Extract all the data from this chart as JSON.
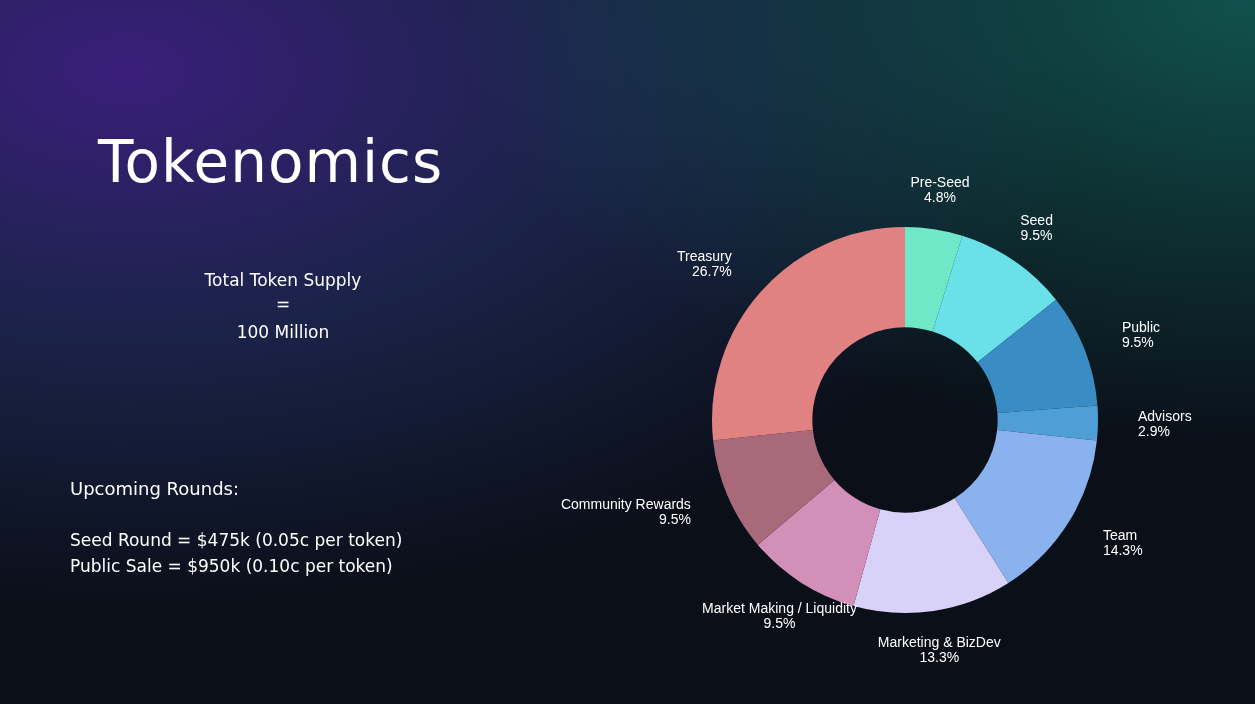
{
  "chart_data": {
    "type": "donut",
    "title": "Tokenomics",
    "categories": [
      "Pre-Seed",
      "Seed",
      "Public",
      "Advisors",
      "Team",
      "Marketing & BizDev",
      "Market Making / Liquidity",
      "Community Rewards",
      "Treasury"
    ],
    "values": [
      4.8,
      9.5,
      9.5,
      2.9,
      14.3,
      13.3,
      9.5,
      9.5,
      26.7
    ],
    "value_labels": [
      "4.8%",
      "9.5%",
      "9.5%",
      "2.9%",
      "14.3%",
      "13.3%",
      "9.5%",
      "9.5%",
      "26.7%"
    ],
    "colors": [
      "#6ee8c6",
      "#6ae0e8",
      "#3a8cc4",
      "#4f9fd6",
      "#8ab2ee",
      "#d8d2f8",
      "#d290b8",
      "#a86a7a",
      "#e08282"
    ],
    "annotations": [
      "Total Token Supply",
      "=",
      "100 Million",
      "Upcoming Rounds:",
      "Seed Round = $475k (0.05c per token)",
      "Public Sale = $950k (0.10c per token)"
    ],
    "legend": false
  }
}
